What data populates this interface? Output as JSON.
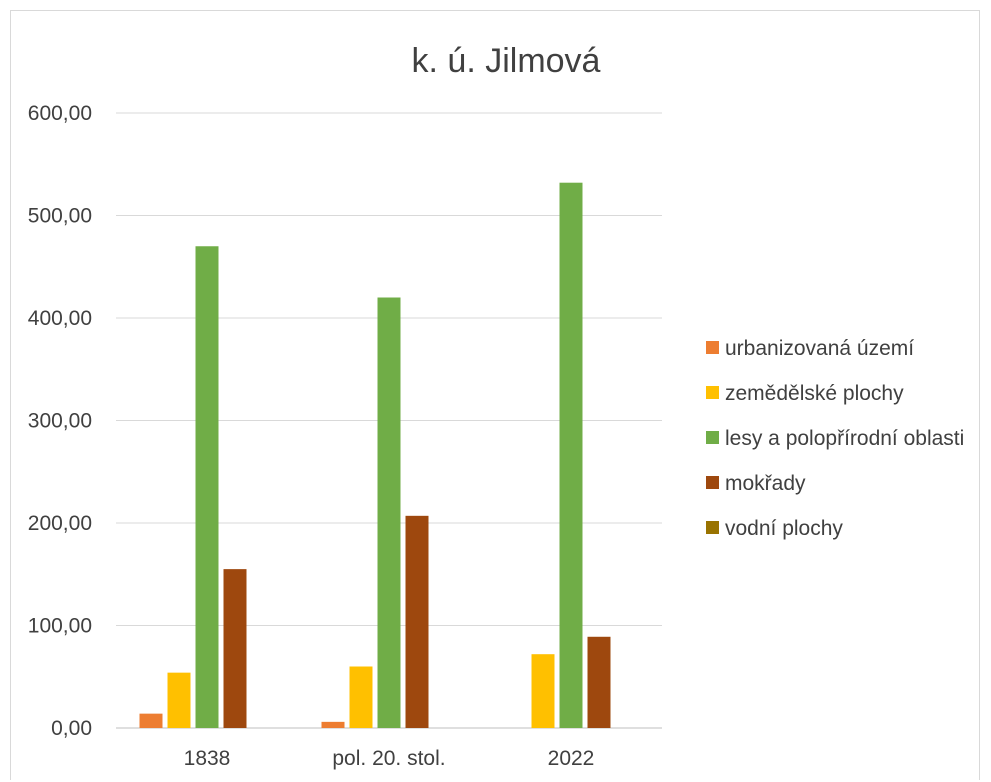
{
  "chart_data": {
    "type": "bar",
    "title": "k. ú. Jilmová",
    "categories": [
      "1838",
      "pol. 20. stol.",
      "2022"
    ],
    "ylim": [
      0,
      600
    ],
    "yticks": [
      0,
      100,
      200,
      300,
      400,
      500,
      600
    ],
    "ytick_labels": [
      "0,00",
      "100,00",
      "200,00",
      "300,00",
      "400,00",
      "500,00",
      "600,00"
    ],
    "grid": true,
    "legend_position": "right",
    "series": [
      {
        "name": "urbanizovaná území",
        "color": "#ED7D31",
        "values": [
          14,
          6,
          0
        ]
      },
      {
        "name": "zemědělské plochy",
        "color": "#FFC000",
        "values": [
          54,
          60,
          72
        ]
      },
      {
        "name": "lesy a polopřírodní oblasti",
        "color": "#70AD47",
        "values": [
          470,
          420,
          532
        ]
      },
      {
        "name": "mokřady",
        "color": "#9E480E",
        "values": [
          155,
          207,
          89
        ]
      },
      {
        "name": "vodní plochy",
        "color": "#997300",
        "values": [
          0,
          0,
          0
        ]
      }
    ]
  }
}
